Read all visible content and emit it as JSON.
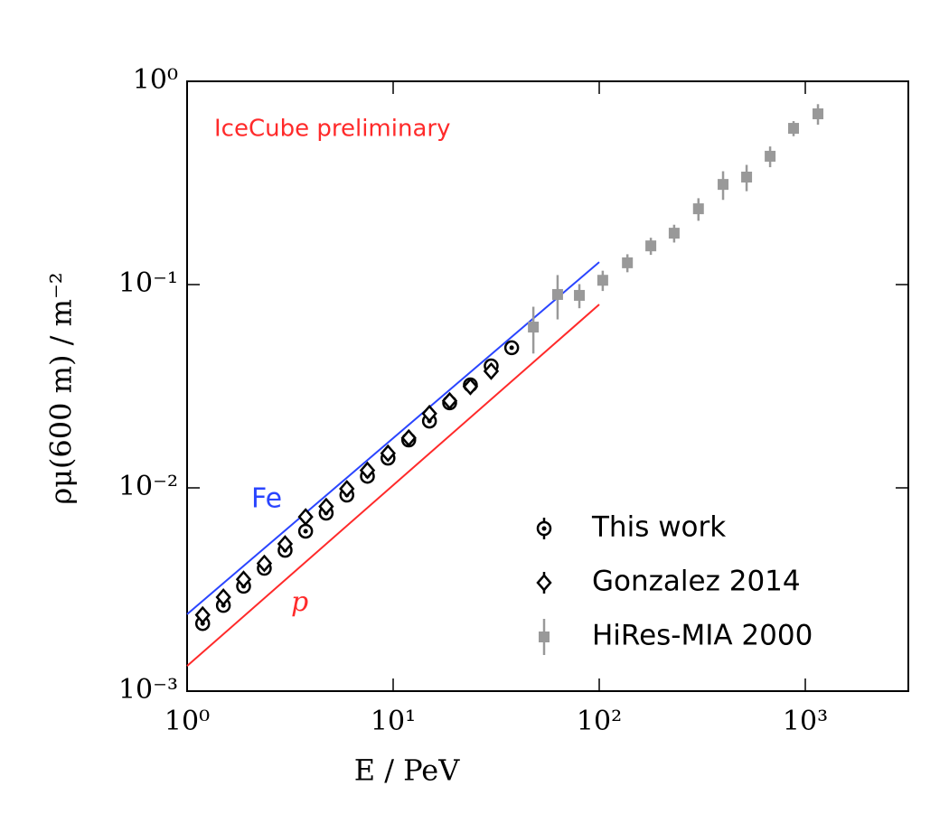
{
  "chart_data": {
    "type": "scatter",
    "x_label": "E / PeV",
    "y_label": "ρμ(600 m) / m⁻²",
    "annotation": "IceCube preliminary",
    "log_x": true,
    "log_y": true,
    "xlim": [
      1,
      3162
    ],
    "ylim": [
      0.001,
      1
    ],
    "xticks": [
      {
        "value": 1,
        "label": "10⁰"
      },
      {
        "value": 10,
        "label": "10¹"
      },
      {
        "value": 100,
        "label": "10²"
      },
      {
        "value": 1000,
        "label": "10³"
      }
    ],
    "yticks": [
      {
        "value": 0.001,
        "label": "10⁻³"
      },
      {
        "value": 0.01,
        "label": "10⁻²"
      },
      {
        "value": 0.1,
        "label": "10⁻¹"
      },
      {
        "value": 1,
        "label": "10⁰"
      }
    ],
    "legend": "lower right",
    "series": [
      {
        "name": "This work",
        "color": "#000000",
        "marker": "circle",
        "x": [
          1.19,
          1.5,
          1.88,
          2.37,
          2.99,
          3.76,
          4.73,
          5.96,
          7.5,
          9.44,
          11.9,
          15.0,
          18.8,
          23.7,
          29.9,
          37.6
        ],
        "values": [
          0.00215,
          0.00264,
          0.00328,
          0.00402,
          0.00493,
          0.00612,
          0.00751,
          0.00921,
          0.0114,
          0.014,
          0.0172,
          0.0213,
          0.0262,
          0.0321,
          0.0398,
          0.0489
        ]
      },
      {
        "name": "Gonzalez 2014",
        "color": "#000000",
        "marker": "diamond",
        "x": [
          1.19,
          1.5,
          1.88,
          2.37,
          2.99,
          3.76,
          4.73,
          5.96,
          7.5,
          9.44,
          11.9,
          15.0,
          18.8,
          23.7,
          29.9
        ],
        "values": [
          0.00237,
          0.0029,
          0.00355,
          0.00425,
          0.0053,
          0.0072,
          0.0081,
          0.0099,
          0.0122,
          0.0148,
          0.0176,
          0.0232,
          0.0268,
          0.0315,
          0.0375
        ]
      },
      {
        "name": "HiRes-MIA 2000",
        "color": "#999999",
        "marker": "square",
        "x": [
          47.9,
          62.8,
          80.1,
          104,
          137,
          178,
          231,
          303,
          399,
          519,
          675,
          877,
          1152
        ],
        "values": [
          0.0618,
          0.0894,
          0.0885,
          0.105,
          0.128,
          0.155,
          0.179,
          0.236,
          0.311,
          0.338,
          0.428,
          0.587,
          0.692
        ],
        "errors": [
          0.016,
          0.022,
          0.012,
          0.012,
          0.013,
          0.015,
          0.018,
          0.03,
          0.05,
          0.05,
          0.05,
          0.05,
          0.08
        ]
      }
    ],
    "model_lines": [
      {
        "name": "Fe",
        "color": "#2a45ff",
        "x": [
          1,
          100
        ],
        "values": [
          0.00239,
          0.129
        ]
      },
      {
        "name": "p",
        "color": "#ff2a2a",
        "x": [
          1,
          100
        ],
        "values": [
          0.00133,
          0.0798
        ]
      }
    ]
  }
}
